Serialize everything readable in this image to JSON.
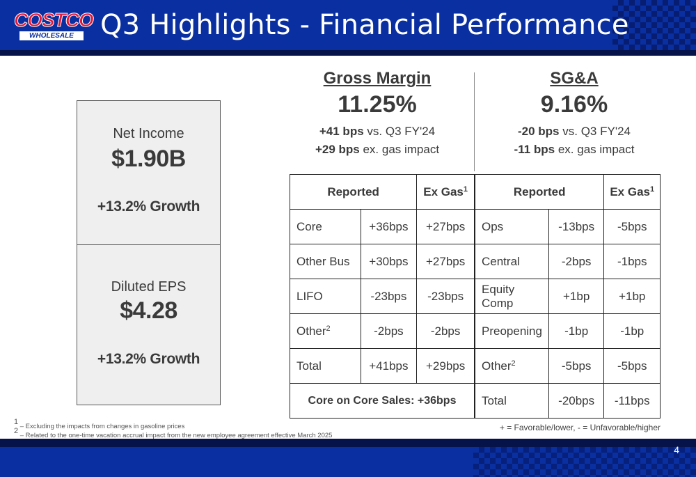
{
  "header": {
    "logo_top": "COSTCO",
    "logo_bottom": "WHOLESALE",
    "title": "Q3 Highlights - Financial Performance"
  },
  "net_income": {
    "label": "Net Income",
    "value": "$1.90B",
    "growth": "+13.2% Growth"
  },
  "diluted_eps": {
    "label": "Diluted EPS",
    "value": "$4.28",
    "growth": "+13.2% Growth"
  },
  "gross_margin": {
    "heading": "Gross Margin",
    "value": "11.25%",
    "line1_bold": "+41 bps",
    "line1_rest": " vs. Q3 FY'24",
    "line2_bold": "+29 bps",
    "line2_rest": " ex. gas impact"
  },
  "sga": {
    "heading": "SG&A",
    "value": "9.16%",
    "line1_bold": "-20 bps",
    "line1_rest": " vs. Q3 FY'24",
    "line2_bold": "-11 bps",
    "line2_rest": " ex. gas impact"
  },
  "gm_table": {
    "header_reported": "Reported",
    "header_exgas": "Ex Gas",
    "header_exgas_sup": "1",
    "rows": [
      {
        "label": "Core",
        "sup": "",
        "reported": "+36bps",
        "exgas": "+27bps"
      },
      {
        "label": "Other Bus",
        "sup": "",
        "reported": "+30bps",
        "exgas": "+27bps"
      },
      {
        "label": "LIFO",
        "sup": "",
        "reported": "-23bps",
        "exgas": "-23bps"
      },
      {
        "label": "Other",
        "sup": "2",
        "reported": "-2bps",
        "exgas": "-2bps"
      },
      {
        "label": "Total",
        "sup": "",
        "reported": "+41bps",
        "exgas": "+29bps"
      }
    ],
    "footer": "Core on Core Sales: +36bps"
  },
  "sga_table": {
    "header_reported": "Reported",
    "header_exgas": "Ex Gas",
    "header_exgas_sup": "1",
    "rows": [
      {
        "label": "Ops",
        "sup": "",
        "reported": "-13bps",
        "exgas": "-5bps"
      },
      {
        "label": "Central",
        "sup": "",
        "reported": "-2bps",
        "exgas": "-1bps"
      },
      {
        "label": "Equity Comp",
        "sup": "",
        "reported": "+1bp",
        "exgas": "+1bp"
      },
      {
        "label": "Preopening",
        "sup": "",
        "reported": "-1bp",
        "exgas": "-1bp"
      },
      {
        "label": "Other",
        "sup": "2",
        "reported": "-5bps",
        "exgas": "-5bps"
      },
      {
        "label": "Total",
        "sup": "",
        "reported": "-20bps",
        "exgas": "-11bps"
      }
    ]
  },
  "footnotes": {
    "n1_sup": "1",
    "n1": " – Excluding the impacts from changes in gasoline prices",
    "n2_sup": "2",
    "n2": " – Related to the one-time vacation accrual impact from the new employee agreement effective March 2025"
  },
  "legend": "+ = Favorable/lower, - = Unfavorable/higher",
  "page_number": "4"
}
